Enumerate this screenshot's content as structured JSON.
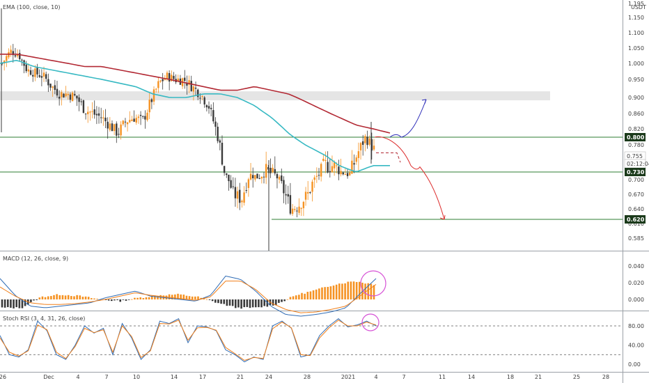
{
  "instrument": {
    "currency": "USDT"
  },
  "panes": {
    "price": {
      "title": "EMA (100, close, 10)"
    },
    "macd": {
      "title": "MACD (12, 26, close, 9)"
    },
    "stoch": {
      "title": "Stoch RSI (3, 4, 31, 26, close)"
    }
  },
  "price_tags": [
    {
      "label": "0.800",
      "value": 0.8,
      "style": "dark"
    },
    {
      "label": "0.755",
      "value": 0.755,
      "style": "light"
    },
    {
      "label": "02:12:04",
      "value": 0.741,
      "style": "light"
    },
    {
      "label": "0.730",
      "value": 0.73,
      "style": "dark"
    },
    {
      "label": "0.620",
      "value": 0.62,
      "style": "dark"
    }
  ],
  "colors": {
    "candle_up": "#f59222",
    "candle_down": "#3a3a3a",
    "ema_long": "#b22833",
    "ema_short": "#37b9c3",
    "levels": "#2e7d32",
    "zone": "#dcdcdc",
    "bull_arrow": "#2a2ab8",
    "bear_arrow": "#dc2b2b",
    "circle": "#d652d6",
    "stoch_k": "#2f6cb5",
    "stoch_d": "#f07f1a",
    "tag_dark": "#1b3a1b"
  },
  "chart_data": [
    {
      "type": "candlestick",
      "pane": "price",
      "y_axis_ticks": [
        "1.195",
        "1.150",
        "1.100",
        "1.050",
        "1.000",
        "0.950",
        "0.900",
        "0.860",
        "0.820",
        "0.780",
        "0.730",
        "0.700",
        "0.670",
        "0.640",
        "0.610",
        "0.585"
      ],
      "x_axis_ticks": [
        "26",
        "Dec",
        "4",
        "7",
        "10",
        "14",
        "17",
        "21",
        "24",
        "28",
        "2021",
        "4",
        "7",
        "11",
        "14",
        "18",
        "21",
        "25",
        "28"
      ],
      "anchors": [
        1.0,
        1.04,
        1.03,
        0.98,
        0.97,
        0.96,
        0.93,
        0.91,
        0.91,
        0.9,
        0.87,
        0.86,
        0.85,
        0.83,
        0.81,
        0.84,
        0.85,
        0.84,
        0.89,
        0.94,
        0.96,
        0.95,
        0.95,
        0.93,
        0.91,
        0.88,
        0.81,
        0.72,
        0.67,
        0.66,
        0.72,
        0.71,
        0.73,
        0.72,
        0.68,
        0.64,
        0.65,
        0.67,
        0.71,
        0.74,
        0.74,
        0.73,
        0.72,
        0.76,
        0.8,
        0.77
      ],
      "ema_long": [
        1.03,
        1.03,
        1.02,
        1.01,
        1.0,
        0.99,
        0.99,
        0.98,
        0.97,
        0.96,
        0.95,
        0.94,
        0.93,
        0.92,
        0.92,
        0.93,
        0.92,
        0.91,
        0.89,
        0.87,
        0.85,
        0.83,
        0.82,
        0.81
      ],
      "ema_short": [
        1.0,
        1.01,
        0.99,
        0.98,
        0.97,
        0.96,
        0.95,
        0.94,
        0.93,
        0.91,
        0.9,
        0.9,
        0.91,
        0.91,
        0.9,
        0.88,
        0.85,
        0.81,
        0.78,
        0.76,
        0.74,
        0.73,
        0.74,
        0.74
      ],
      "resistance_zone": [
        0.893,
        0.917
      ],
      "levels": [
        0.8,
        0.73,
        0.62
      ],
      "projection_bull": [
        0.8,
        0.808,
        0.8,
        0.845,
        0.895
      ],
      "projection_bear": [
        0.8,
        0.785,
        0.74,
        0.733,
        0.7,
        0.62
      ]
    },
    {
      "type": "bar",
      "pane": "macd",
      "y_axis_ticks": [
        "0.040",
        "0.020",
        "0.000"
      ],
      "anchors": [
        -0.01,
        -0.01,
        0.003,
        0.006,
        0.004,
        0.0,
        -0.002,
        0.002,
        0.005,
        0.006,
        0.003,
        -0.004,
        -0.01,
        -0.01,
        -0.006,
        0.005,
        0.011,
        0.018,
        0.022,
        0.018
      ],
      "macd_line": [
        0.025,
        0.005,
        -0.008,
        -0.01,
        -0.008,
        -0.006,
        -0.004,
        0.002,
        0.006,
        0.01,
        0.004,
        0.002,
        0.0,
        -0.002,
        0.005,
        0.028,
        0.024,
        0.01,
        -0.008,
        -0.018,
        -0.02,
        -0.018,
        -0.015,
        -0.01,
        0.008,
        0.025
      ],
      "signal_line": [
        0.015,
        0.004,
        -0.004,
        -0.006,
        -0.006,
        -0.005,
        -0.003,
        0.0,
        0.004,
        0.008,
        0.005,
        0.003,
        0.001,
        -0.001,
        0.003,
        0.022,
        0.022,
        0.012,
        -0.004,
        -0.012,
        -0.016,
        -0.015,
        -0.012,
        -0.008,
        0.005,
        0.018
      ]
    },
    {
      "type": "line",
      "pane": "stoch",
      "y_axis_ticks": [
        "80.00",
        "40.00",
        "0.00"
      ],
      "upper_band": 80,
      "lower_band": 20,
      "series": [
        {
          "values": [
            60,
            20,
            15,
            30,
            90,
            70,
            20,
            10,
            40,
            80,
            65,
            75,
            20,
            85,
            55,
            10,
            30,
            90,
            85,
            95,
            45,
            80,
            78,
            70,
            30,
            20,
            5,
            15,
            10,
            80,
            90,
            75,
            15,
            20,
            60,
            80,
            95,
            78,
            82,
            90,
            80
          ]
        },
        {
          "values": [
            55,
            25,
            17,
            28,
            82,
            72,
            25,
            12,
            37,
            75,
            66,
            72,
            25,
            80,
            58,
            14,
            28,
            85,
            84,
            92,
            50,
            76,
            77,
            71,
            35,
            22,
            8,
            14,
            12,
            74,
            88,
            76,
            20,
            18,
            55,
            76,
            92,
            80,
            80,
            88,
            82
          ]
        }
      ]
    }
  ]
}
